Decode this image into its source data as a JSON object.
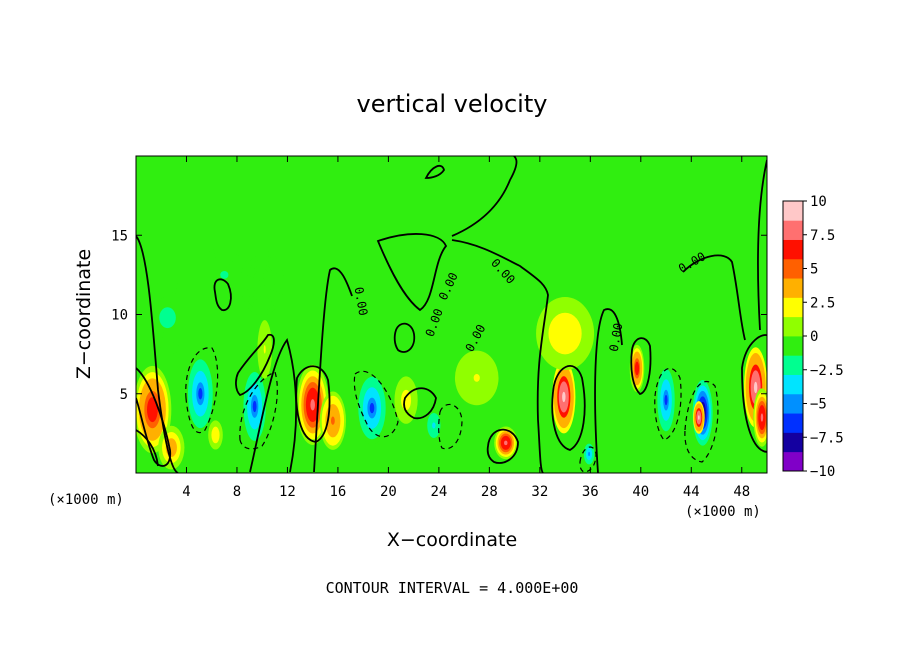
{
  "chart_data": {
    "type": "heatmap",
    "title": "vertical velocity",
    "xlabel": "X−coordinate",
    "ylabel": "Z−coordinate",
    "x_unit_left": "(×1000 m)",
    "x_unit_right": "(×1000 m)",
    "footer": "CONTOUR INTERVAL = 4.000E+00",
    "xlim": [
      0,
      50
    ],
    "ylim": [
      0,
      20
    ],
    "x_ticks": [
      4,
      8,
      12,
      16,
      20,
      24,
      28,
      32,
      36,
      40,
      44,
      48
    ],
    "x_tick_labels": [
      "4",
      "8",
      "12",
      "16",
      "20",
      "24",
      "28",
      "32",
      "36",
      "40",
      "44",
      "48"
    ],
    "y_ticks": [
      5,
      10,
      15
    ],
    "y_tick_labels": [
      "5",
      "10",
      "15"
    ],
    "colorbar": {
      "range": [
        -10,
        10
      ],
      "tick_values": [
        10,
        7.5,
        5,
        2.5,
        0,
        -2.5,
        -5,
        -7.5,
        -10
      ],
      "tick_labels": [
        "10",
        "7.5",
        "5",
        "2.5",
        "0",
        "−2.5",
        "−5",
        "−7.5",
        "−10"
      ],
      "colors": [
        "#8000c8",
        "#1400a0",
        "#0030ff",
        "#0090ff",
        "#00e4ff",
        "#00ff90",
        "#30ee10",
        "#90ff00",
        "#ffff00",
        "#ffb000",
        "#ff6000",
        "#ff1000",
        "#ff7070",
        "#ffc8c8"
      ]
    },
    "contour_labels": [
      "0.00",
      "0.00",
      "0.00",
      "0.00",
      "0.00",
      "0.00",
      "0.00"
    ],
    "features": [
      {
        "x": 1.3,
        "z": 4.0,
        "sx": 1.3,
        "sz": 2.4,
        "value": 7
      },
      {
        "x": 2.8,
        "z": 1.6,
        "sx": 0.9,
        "sz": 1.2,
        "value": 4
      },
      {
        "x": 5.1,
        "z": 5.0,
        "sx": 1.0,
        "sz": 2.2,
        "value": -6
      },
      {
        "x": 9.4,
        "z": 4.2,
        "sx": 0.9,
        "sz": 2.2,
        "value": -6
      },
      {
        "x": 6.3,
        "z": 2.4,
        "sx": 0.5,
        "sz": 0.8,
        "value": 2.5
      },
      {
        "x": 10.2,
        "z": 7.8,
        "sx": 0.5,
        "sz": 1.6,
        "value": 1.5
      },
      {
        "x": 14.0,
        "z": 4.3,
        "sx": 1.1,
        "sz": 2.2,
        "value": 8
      },
      {
        "x": 15.6,
        "z": 3.3,
        "sx": 0.9,
        "sz": 1.6,
        "value": 5
      },
      {
        "x": 18.7,
        "z": 4.1,
        "sx": 1.1,
        "sz": 2.0,
        "value": -6
      },
      {
        "x": 21.4,
        "z": 4.6,
        "sx": 0.8,
        "sz": 1.3,
        "value": 2
      },
      {
        "x": 23.6,
        "z": 3.0,
        "sx": 0.8,
        "sz": 1.2,
        "value": -3
      },
      {
        "x": 29.3,
        "z": 1.9,
        "sx": 0.8,
        "sz": 0.9,
        "value": 8
      },
      {
        "x": 33.9,
        "z": 4.8,
        "sx": 0.8,
        "sz": 2.0,
        "value": 10
      },
      {
        "x": 35.9,
        "z": 1.2,
        "sx": 0.5,
        "sz": 0.8,
        "value": -5
      },
      {
        "x": 39.7,
        "z": 6.6,
        "sx": 0.5,
        "sz": 1.3,
        "value": 7
      },
      {
        "x": 42.0,
        "z": 4.6,
        "sx": 0.7,
        "sz": 2.0,
        "value": -6
      },
      {
        "x": 44.9,
        "z": 3.8,
        "sx": 0.8,
        "sz": 2.1,
        "value": -10
      },
      {
        "x": 44.6,
        "z": 3.5,
        "sx": 0.4,
        "sz": 0.9,
        "value": 10
      },
      {
        "x": 49.1,
        "z": 5.4,
        "sx": 0.8,
        "sz": 2.2,
        "value": 10
      },
      {
        "x": 49.6,
        "z": 3.5,
        "sx": 0.6,
        "sz": 1.6,
        "value": 8
      },
      {
        "x": 34.0,
        "z": 8.8,
        "sx": 2.0,
        "sz": 2.0,
        "value": 2.5
      },
      {
        "x": 2.5,
        "z": 9.8,
        "sx": 2.0,
        "sz": 2.0,
        "value": -2
      },
      {
        "x": 7.0,
        "z": 12.5,
        "sx": 2.0,
        "sz": 1.5,
        "value": -1.5
      },
      {
        "x": 10.0,
        "z": 12.0,
        "sx": 1.5,
        "sz": 1.8,
        "value": -1.2
      },
      {
        "x": 27.0,
        "z": 6.0,
        "sx": 1.5,
        "sz": 1.5,
        "value": 1.5
      }
    ]
  }
}
